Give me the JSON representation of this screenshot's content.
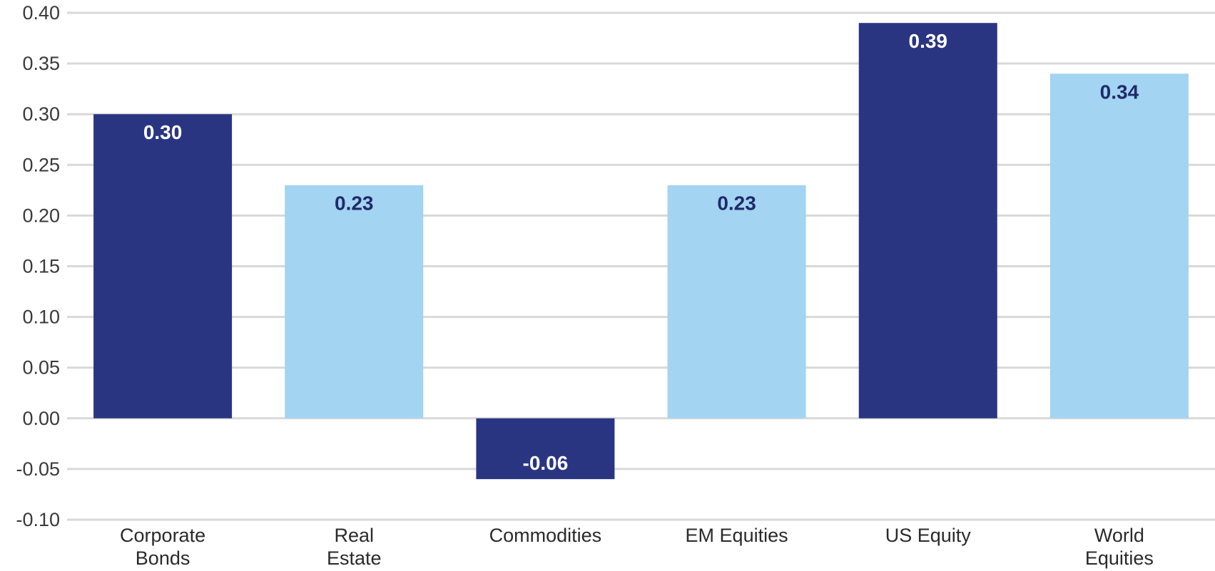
{
  "chart_data": {
    "type": "bar",
    "categories": [
      [
        "Corporate",
        "Bonds"
      ],
      [
        "Real",
        "Estate"
      ],
      [
        "Commodities"
      ],
      [
        "EM Equities"
      ],
      [
        "US Equity"
      ],
      [
        "World",
        "Equities"
      ]
    ],
    "values": [
      0.3,
      0.23,
      -0.06,
      0.23,
      0.39,
      0.34
    ],
    "labels": [
      "0.30",
      "0.23",
      "-0.06",
      "0.23",
      "0.39",
      "0.34"
    ],
    "bar_colors": [
      "#2a3582",
      "#a3d4f1",
      "#2a3582",
      "#a3d4f1",
      "#2a3582",
      "#a3d4f1"
    ],
    "label_colors": [
      "#ffffff",
      "#1f2a6b",
      "#ffffff",
      "#1f2a6b",
      "#ffffff",
      "#1f2a6b"
    ],
    "ylim": [
      -0.1,
      0.4
    ],
    "yticks": [
      "0.40",
      "0.35",
      "0.30",
      "0.25",
      "0.20",
      "0.15",
      "0.10",
      "0.05",
      "0.00",
      "-0.05",
      "-0.10"
    ],
    "grid": true,
    "grid_color": "#d9d9d9",
    "title": "",
    "xlabel": "",
    "ylabel": ""
  }
}
